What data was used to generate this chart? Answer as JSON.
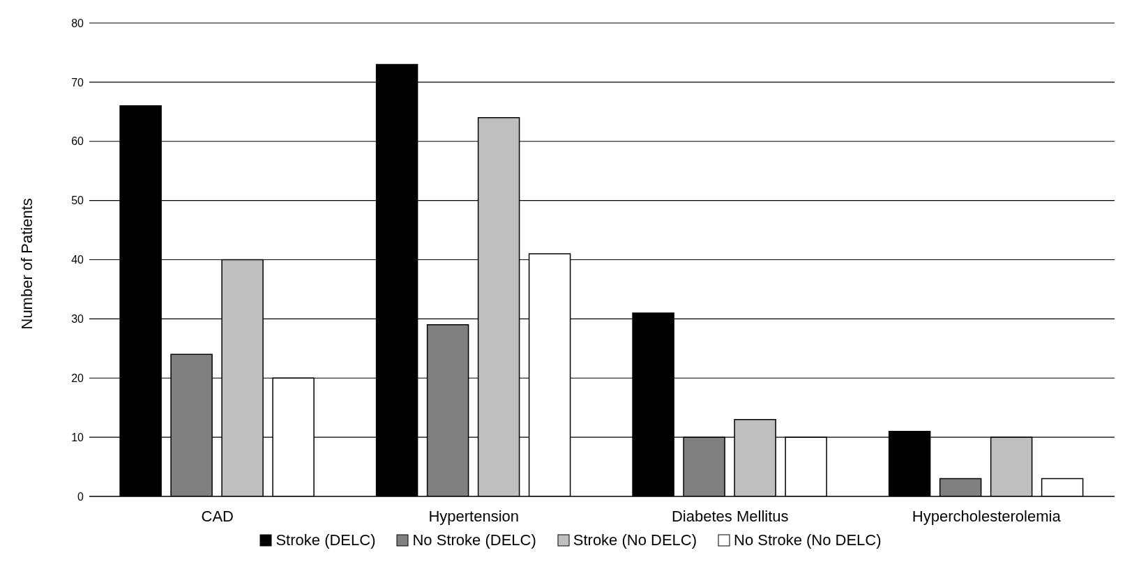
{
  "chart_data": {
    "type": "bar",
    "ylabel": "Number of Patients",
    "categories": [
      "CAD",
      "Hypertension",
      "Diabetes Mellitus",
      "Hypercholesterolemia"
    ],
    "series": [
      {
        "name": "Stroke (DELC)",
        "color": "#000000",
        "values": [
          66,
          73,
          31,
          11
        ]
      },
      {
        "name": "No Stroke (DELC)",
        "color": "#808080",
        "values": [
          24,
          29,
          10,
          3
        ]
      },
      {
        "name": "Stroke (No DELC)",
        "color": "#bfbfbf",
        "values": [
          40,
          64,
          13,
          10
        ]
      },
      {
        "name": "No Stroke (No DELC)",
        "color": "#ffffff",
        "values": [
          20,
          41,
          10,
          3
        ]
      }
    ],
    "ylim": [
      0,
      80
    ],
    "yticks": [
      0,
      10,
      20,
      30,
      40,
      50,
      60,
      70,
      80
    ],
    "grid": "y",
    "legend": "bottom"
  }
}
